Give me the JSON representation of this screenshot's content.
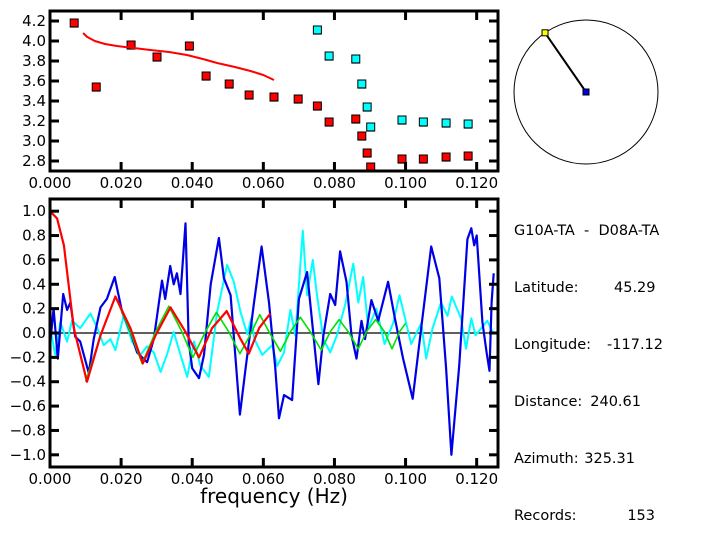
{
  "colors": {
    "red": "#ff0000",
    "cyan": "#00ffff",
    "blue": "#0000e6",
    "green": "#00e000",
    "yellow": "#ffff00",
    "axis": "#000000"
  },
  "info": {
    "title": "G10A-TA  -  D08A-TA",
    "rows": [
      {
        "label": "Latitude:",
        "value": "45.29"
      },
      {
        "label": "Longitude:",
        "value": "-117.12"
      },
      {
        "label": "Distance:",
        "value": "240.61"
      },
      {
        "label": "Azimuth:",
        "value": "325.31"
      },
      {
        "label": "Records:",
        "value": "153"
      }
    ]
  },
  "azimuth_deg": 325.31,
  "chart_data": [
    {
      "type": "scatter",
      "xlim": [
        0,
        0.126
      ],
      "ylim": [
        2.7,
        4.3
      ],
      "xticks": [
        "0.000",
        "0.020",
        "0.040",
        "0.060",
        "0.080",
        "0.100",
        "0.120"
      ],
      "yticks": [
        "2.8",
        "3.0",
        "3.2",
        "3.4",
        "3.6",
        "3.8",
        "4.0",
        "4.2"
      ],
      "series": [
        {
          "color": "red",
          "kind": "points",
          "points": [
            [
              0.0068,
              4.18
            ],
            [
              0.013,
              3.54
            ],
            [
              0.0228,
              3.96
            ],
            [
              0.0301,
              3.84
            ],
            [
              0.0392,
              3.95
            ],
            [
              0.0439,
              3.65
            ],
            [
              0.0504,
              3.57
            ],
            [
              0.056,
              3.46
            ],
            [
              0.063,
              3.44
            ],
            [
              0.0698,
              3.42
            ],
            [
              0.0752,
              3.35
            ],
            [
              0.0785,
              3.19
            ],
            [
              0.086,
              3.22
            ],
            [
              0.0877,
              3.05
            ],
            [
              0.0892,
              2.88
            ],
            [
              0.0902,
              2.74
            ],
            [
              0.099,
              2.82
            ],
            [
              0.105,
              2.82
            ],
            [
              0.1114,
              2.84
            ],
            [
              0.1176,
              2.85
            ]
          ]
        },
        {
          "color": "cyan",
          "kind": "points",
          "points": [
            [
              0.0752,
              4.11
            ],
            [
              0.0785,
              3.85
            ],
            [
              0.086,
              3.82
            ],
            [
              0.0877,
              3.57
            ],
            [
              0.0892,
              3.34
            ],
            [
              0.0902,
              3.14
            ],
            [
              0.099,
              3.21
            ],
            [
              0.105,
              3.19
            ],
            [
              0.1114,
              3.18
            ],
            [
              0.1176,
              3.17
            ]
          ]
        },
        {
          "color": "red",
          "kind": "line",
          "points": [
            [
              0.0093,
              4.08
            ],
            [
              0.0105,
              4.04
            ],
            [
              0.0126,
              4.0
            ],
            [
              0.0155,
              3.97
            ],
            [
              0.0188,
              3.95
            ],
            [
              0.0235,
              3.93
            ],
            [
              0.0282,
              3.91
            ],
            [
              0.0335,
              3.89
            ],
            [
              0.0385,
              3.86
            ],
            [
              0.043,
              3.82
            ],
            [
              0.047,
              3.78
            ],
            [
              0.052,
              3.74
            ],
            [
              0.0564,
              3.7
            ],
            [
              0.06,
              3.66
            ],
            [
              0.063,
              3.61
            ]
          ]
        }
      ]
    },
    {
      "type": "line",
      "xlabel": "frequency (Hz)",
      "xlim": [
        0,
        0.126
      ],
      "ylim": [
        -1.1,
        1.1
      ],
      "xticks": [
        "0.000",
        "0.020",
        "0.040",
        "0.060",
        "0.080",
        "0.100",
        "0.120"
      ],
      "yticks": [
        "-1.0",
        "-0.8",
        "-0.6",
        "-0.4",
        "-0.2",
        "0.0",
        "0.2",
        "0.4",
        "0.6",
        "0.8",
        "1.0"
      ],
      "series": [
        {
          "color": "cyan",
          "width": 2,
          "points": [
            [
              0,
              0.05
            ],
            [
              0.0015,
              -0.18
            ],
            [
              0.0029,
              0.09
            ],
            [
              0.0048,
              -0.07
            ],
            [
              0.0062,
              0.1
            ],
            [
              0.0085,
              0.04
            ],
            [
              0.0114,
              0.16
            ],
            [
              0.0132,
              0.05
            ],
            [
              0.0151,
              -0.1
            ],
            [
              0.017,
              -0.05
            ],
            [
              0.0184,
              -0.14
            ],
            [
              0.0207,
              0.14
            ],
            [
              0.0231,
              -0.07
            ],
            [
              0.0254,
              -0.18
            ],
            [
              0.0273,
              -0.11
            ],
            [
              0.0292,
              -0.16
            ],
            [
              0.0311,
              -0.32
            ],
            [
              0.033,
              -0.17
            ],
            [
              0.0348,
              0.01
            ],
            [
              0.0367,
              -0.18
            ],
            [
              0.0386,
              -0.36
            ],
            [
              0.0405,
              -0.07
            ],
            [
              0.0423,
              -0.27
            ],
            [
              0.0447,
              -0.36
            ],
            [
              0.047,
              0.17
            ],
            [
              0.0498,
              0.56
            ],
            [
              0.0517,
              0.42
            ],
            [
              0.0536,
              0.17
            ],
            [
              0.0555,
              -0.01
            ],
            [
              0.0566,
              0.12
            ],
            [
              0.0575,
              -0.05
            ],
            [
              0.0597,
              -0.18
            ],
            [
              0.0625,
              -0.1
            ],
            [
              0.0639,
              -0.27
            ],
            [
              0.0658,
              -0.16
            ],
            [
              0.0676,
              0.19
            ],
            [
              0.069,
              -0.02
            ],
            [
              0.0711,
              0.84
            ],
            [
              0.0723,
              0.31
            ],
            [
              0.0739,
              0.6
            ],
            [
              0.0751,
              0.31
            ],
            [
              0.0769,
              -0.05
            ],
            [
              0.0788,
              -0.16
            ],
            [
              0.0807,
              -0.02
            ],
            [
              0.083,
              0.23
            ],
            [
              0.0853,
              0.57
            ],
            [
              0.0867,
              0.25
            ],
            [
              0.0881,
              0.46
            ],
            [
              0.0895,
              0.04
            ],
            [
              0.0918,
              0.2
            ],
            [
              0.0941,
              -0.09
            ],
            [
              0.0965,
              0.08
            ],
            [
              0.0983,
              0.31
            ],
            [
              0.1016,
              -0.09
            ],
            [
              0.1044,
              0.08
            ],
            [
              0.1058,
              -0.21
            ],
            [
              0.1076,
              0.04
            ],
            [
              0.11,
              0.25
            ],
            [
              0.1118,
              0.14
            ],
            [
              0.113,
              0.3
            ],
            [
              0.1156,
              0.12
            ],
            [
              0.117,
              -0.13
            ],
            [
              0.1185,
              0.12
            ],
            [
              0.1197,
              -0.02
            ],
            [
              0.123,
              0.1
            ],
            [
              0.1248,
              -0.01
            ]
          ]
        },
        {
          "color": "blue",
          "width": 2.2,
          "points": [
            [
              0,
              -0.1
            ],
            [
              0.001,
              0.2
            ],
            [
              0.0022,
              -0.21
            ],
            [
              0.0037,
              0.32
            ],
            [
              0.0048,
              0.19
            ],
            [
              0.0057,
              0.25
            ],
            [
              0.0071,
              -0.03
            ],
            [
              0.0085,
              -0.07
            ],
            [
              0.0109,
              -0.33
            ],
            [
              0.0123,
              -0.05
            ],
            [
              0.0142,
              0.21
            ],
            [
              0.016,
              0.28
            ],
            [
              0.0182,
              0.46
            ],
            [
              0.0203,
              0.17
            ],
            [
              0.0226,
              0.01
            ],
            [
              0.0245,
              -0.16
            ],
            [
              0.0273,
              -0.24
            ],
            [
              0.0292,
              -0.05
            ],
            [
              0.0315,
              0.43
            ],
            [
              0.0324,
              0.28
            ],
            [
              0.0338,
              0.55
            ],
            [
              0.0348,
              0.4
            ],
            [
              0.0357,
              0.49
            ],
            [
              0.0367,
              0.32
            ],
            [
              0.0381,
              0.9
            ],
            [
              0.039,
              -0.07
            ],
            [
              0.04,
              -0.29
            ],
            [
              0.0419,
              -0.37
            ],
            [
              0.0433,
              -0.18
            ],
            [
              0.0452,
              0.4
            ],
            [
              0.0475,
              0.78
            ],
            [
              0.0489,
              0.45
            ],
            [
              0.0508,
              0.31
            ],
            [
              0.0534,
              -0.67
            ],
            [
              0.055,
              -0.29
            ],
            [
              0.0573,
              0.23
            ],
            [
              0.0595,
              0.71
            ],
            [
              0.0616,
              0.25
            ],
            [
              0.0633,
              -0.27
            ],
            [
              0.0644,
              -0.7
            ],
            [
              0.0658,
              -0.51
            ],
            [
              0.0681,
              -0.55
            ],
            [
              0.07,
              0.28
            ],
            [
              0.0723,
              0.5
            ],
            [
              0.0741,
              -0.02
            ],
            [
              0.0755,
              -0.42
            ],
            [
              0.0769,
              -0.02
            ],
            [
              0.0788,
              0.32
            ],
            [
              0.0802,
              0.23
            ],
            [
              0.0816,
              0.67
            ],
            [
              0.0834,
              0.42
            ],
            [
              0.0848,
              -0.02
            ],
            [
              0.0862,
              -0.21
            ],
            [
              0.0876,
              0.1
            ],
            [
              0.0886,
              -0.05
            ],
            [
              0.0904,
              0.27
            ],
            [
              0.0923,
              0.1
            ],
            [
              0.0951,
              0.42
            ],
            [
              0.097,
              0.12
            ],
            [
              0.0993,
              -0.21
            ],
            [
              0.102,
              -0.54
            ],
            [
              0.1044,
              0.04
            ],
            [
              0.1072,
              0.71
            ],
            [
              0.1095,
              0.45
            ],
            [
              0.1114,
              -0.29
            ],
            [
              0.1129,
              -1.0
            ],
            [
              0.1151,
              -0.27
            ],
            [
              0.1174,
              0.77
            ],
            [
              0.1185,
              0.86
            ],
            [
              0.1193,
              0.72
            ],
            [
              0.12,
              0.8
            ],
            [
              0.1216,
              0.09
            ],
            [
              0.1228,
              -0.16
            ],
            [
              0.1236,
              -0.31
            ],
            [
              0.1242,
              0.25
            ],
            [
              0.1248,
              0.49
            ]
          ]
        },
        {
          "color": "green",
          "width": 1.6,
          "points": [
            [
              0.01,
              -0.4
            ],
            [
              0.0142,
              -0.02
            ],
            [
              0.0184,
              0.3
            ],
            [
              0.0222,
              0.04
            ],
            [
              0.0259,
              -0.25
            ],
            [
              0.0297,
              0.01
            ],
            [
              0.0334,
              0.22
            ],
            [
              0.0371,
              0.01
            ],
            [
              0.0402,
              -0.2
            ],
            [
              0.0437,
              0.01
            ],
            [
              0.0468,
              0.17
            ],
            [
              0.0503,
              0.01
            ],
            [
              0.0534,
              -0.17
            ],
            [
              0.0564,
              -0.01
            ],
            [
              0.059,
              0.15
            ],
            [
              0.0616,
              0.01
            ],
            [
              0.0648,
              -0.15
            ],
            [
              0.0676,
              0.01
            ],
            [
              0.0704,
              0.13
            ],
            [
              0.0732,
              0.01
            ],
            [
              0.0763,
              -0.14
            ],
            [
              0.0788,
              0.01
            ],
            [
              0.0813,
              0.11
            ],
            [
              0.0839,
              0.01
            ],
            [
              0.0867,
              -0.13
            ],
            [
              0.089,
              0.01
            ],
            [
              0.0916,
              0.11
            ],
            [
              0.0941,
              0.01
            ],
            [
              0.0962,
              -0.13
            ],
            [
              0.0983,
              0.01
            ],
            [
              0.1,
              0.08
            ]
          ]
        },
        {
          "color": "red",
          "width": 2.2,
          "points": [
            [
              0,
              1.0
            ],
            [
              0.002,
              0.94
            ],
            [
              0.0039,
              0.72
            ],
            [
              0.0067,
              0.04
            ],
            [
              0.0104,
              -0.4
            ],
            [
              0.0142,
              -0.02
            ],
            [
              0.0184,
              0.3
            ],
            [
              0.0226,
              0.04
            ],
            [
              0.0261,
              -0.25
            ],
            [
              0.0297,
              -0.02
            ],
            [
              0.0339,
              0.21
            ],
            [
              0.0381,
              0.01
            ],
            [
              0.0419,
              -0.2
            ],
            [
              0.0456,
              0.04
            ],
            [
              0.0497,
              0.18
            ],
            [
              0.0536,
              -0.05
            ],
            [
              0.0559,
              -0.17
            ],
            [
              0.0588,
              0.04
            ],
            [
              0.062,
              0.16
            ]
          ]
        }
      ]
    }
  ]
}
